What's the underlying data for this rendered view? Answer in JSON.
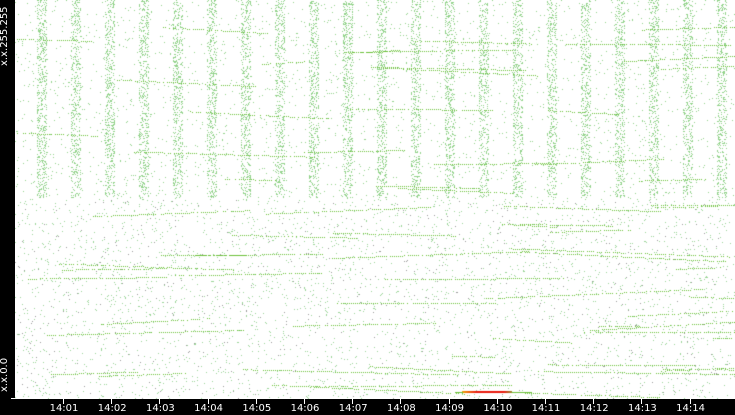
{
  "chart_data": {
    "type": "scatter",
    "title": "",
    "xlabel": "",
    "ylabel": "",
    "x_ticks": [
      "14:01",
      "14:02",
      "14:03",
      "14:04",
      "14:05",
      "14:06",
      "14:07",
      "14:08",
      "14:09",
      "14:10",
      "14:11",
      "14:12",
      "14:13",
      "14:14"
    ],
    "y_ticks": [
      "x.x.0.0",
      "x.x.255.255"
    ],
    "grid": false,
    "legend": "none",
    "colors": {
      "background": "#ffffff",
      "frame": "#000000",
      "point_low": "#93d38b",
      "point_line": "#6cc13a",
      "hot_high": "#e8160a",
      "hot_mid": "#f2b600"
    },
    "hotspot": {
      "x_range": [
        "14:09",
        "14:10"
      ],
      "y": "x.x.0.0"
    }
  }
}
